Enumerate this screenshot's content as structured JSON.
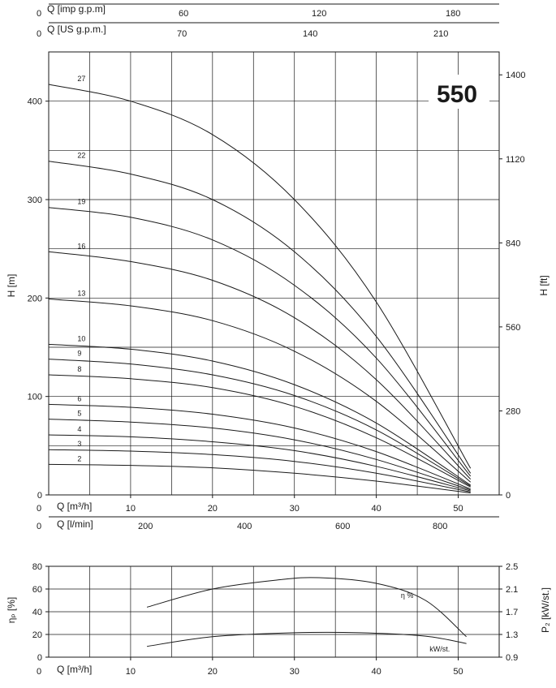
{
  "chart_data": [
    {
      "type": "line",
      "model_label": "550",
      "ylabel_left": "H [m]",
      "ylabel_right": "H [ft]",
      "xlim": [
        0,
        55
      ],
      "ylim": [
        0,
        450
      ],
      "y_ticks_left": [
        0,
        100,
        200,
        300,
        400
      ],
      "y_ticks_right": [
        0,
        280,
        560,
        840,
        1120,
        1400
      ],
      "x_ticks": [
        0,
        10,
        20,
        30,
        40,
        50
      ],
      "top_axes": [
        {
          "label": "Q [imp g.p.m]",
          "ticks": [
            "0",
            "60",
            "120",
            "180"
          ]
        },
        {
          "label": "Q [US g.p.m.]",
          "ticks": [
            "0",
            "70",
            "140",
            "210"
          ]
        }
      ],
      "bottom_axes": [
        {
          "label": "Q [m³/h]",
          "ticks": [
            "0",
            "10",
            "20",
            "30",
            "40",
            "50"
          ]
        },
        {
          "label": "Q [l/min]",
          "ticks": [
            "0",
            "200",
            "400",
            "600",
            "800"
          ]
        }
      ],
      "series": [
        {
          "name": "2",
          "q": [
            0,
            10,
            20,
            30,
            40,
            51.5
          ],
          "h": [
            31,
            30,
            27.5,
            22,
            14,
            2
          ]
        },
        {
          "name": "3",
          "q": [
            0,
            10,
            20,
            30,
            40,
            51.5
          ],
          "h": [
            46,
            44.5,
            41,
            34,
            22,
            3
          ]
        },
        {
          "name": "4",
          "q": [
            0,
            10,
            20,
            30,
            40,
            51.5
          ],
          "h": [
            61,
            59,
            54,
            45,
            29,
            4
          ]
        },
        {
          "name": "5",
          "q": [
            0,
            10,
            20,
            30,
            40,
            51.5
          ],
          "h": [
            77,
            74,
            68,
            56,
            36,
            5
          ]
        },
        {
          "name": "6",
          "q": [
            0,
            10,
            20,
            30,
            40,
            51.5
          ],
          "h": [
            92,
            89,
            82,
            68,
            44,
            6
          ]
        },
        {
          "name": "8",
          "q": [
            0,
            10,
            20,
            30,
            40,
            51.5
          ],
          "h": [
            122,
            118,
            109,
            90,
            58,
            8
          ]
        },
        {
          "name": "9",
          "q": [
            0,
            10,
            20,
            30,
            40,
            51.5
          ],
          "h": [
            138,
            133,
            122,
            101,
            66,
            9
          ]
        },
        {
          "name": "10",
          "q": [
            0,
            10,
            20,
            30,
            40,
            51.5
          ],
          "h": [
            153,
            148,
            136,
            112,
            73,
            10
          ]
        },
        {
          "name": "13",
          "q": [
            0,
            10,
            20,
            30,
            40,
            51.5
          ],
          "h": [
            199,
            192,
            177,
            146,
            95,
            13
          ]
        },
        {
          "name": "16",
          "q": [
            0,
            10,
            20,
            30,
            40,
            51.5
          ],
          "h": [
            247,
            237,
            218,
            180,
            117,
            16
          ]
        },
        {
          "name": "19",
          "q": [
            0,
            10,
            20,
            30,
            40,
            51.5
          ],
          "h": [
            292,
            282,
            259,
            213,
            139,
            19
          ]
        },
        {
          "name": "22",
          "q": [
            0,
            10,
            20,
            30,
            40,
            51.5
          ],
          "h": [
            339,
            326,
            300,
            247,
            161,
            22
          ]
        },
        {
          "name": "27",
          "q": [
            0,
            10,
            20,
            30,
            40,
            51.5
          ],
          "h": [
            417,
            400,
            366,
            300,
            196,
            27
          ]
        }
      ]
    },
    {
      "type": "line",
      "ylabel_left": "ηₚ [%]",
      "ylabel_right": "P₂ [kW/st.]",
      "xlim": [
        0,
        55
      ],
      "ylim": [
        0,
        80
      ],
      "y_ticks_left": [
        0,
        20,
        40,
        60,
        80
      ],
      "y_ticks_right": [
        "0.9",
        "1.3",
        "1.7",
        "2.1",
        "2.5"
      ],
      "x_ticks": [
        0,
        10,
        20,
        30,
        40,
        50
      ],
      "x_axis_label": "Q [m³/h]",
      "series": [
        {
          "name": "η %",
          "q": [
            12,
            20,
            28,
            33,
            40,
            46,
            51
          ],
          "values": [
            44,
            60,
            68,
            70,
            65,
            50,
            18
          ]
        },
        {
          "name": "kW/st.",
          "q": [
            12,
            20,
            30,
            38,
            46,
            51
          ],
          "values": [
            1.09,
            1.26,
            1.33,
            1.33,
            1.27,
            1.14
          ]
        }
      ]
    }
  ]
}
